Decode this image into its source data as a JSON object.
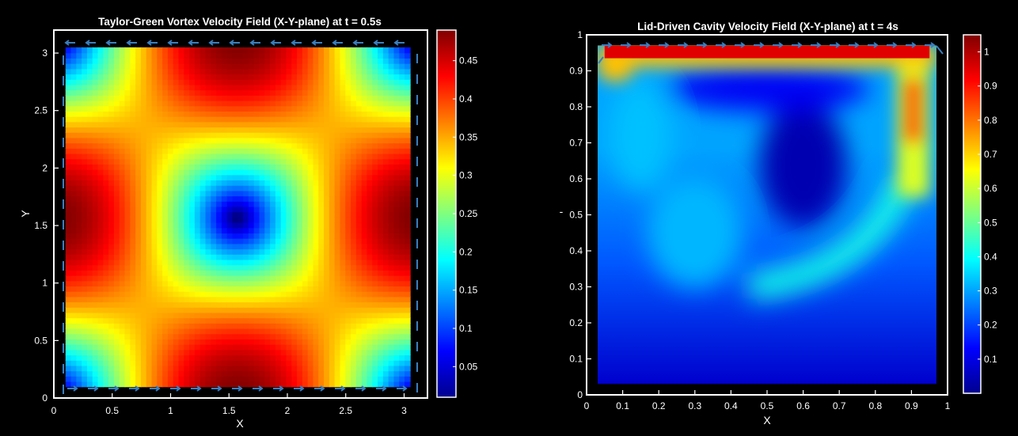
{
  "colormap": "jet",
  "chart_data": [
    {
      "type": "heatmap",
      "title": "Taylor-Green Vortex Velocity Field (X-Y-plane) at t = 0.5s",
      "xlabel": "X",
      "ylabel": "Y",
      "xlim": [
        0,
        3.2
      ],
      "ylim": [
        0,
        3.2
      ],
      "data_extent": {
        "x": [
          0.1,
          3.05
        ],
        "y": [
          0.1,
          3.05
        ]
      },
      "x_ticks": [
        0,
        0.5,
        1,
        1.5,
        2,
        2.5,
        3
      ],
      "x_tick_labels": [
        "0",
        "0.5",
        "1",
        "1.5",
        "2",
        "2.5",
        "3"
      ],
      "y_ticks": [
        0,
        0.5,
        1,
        1.5,
        2,
        2.5,
        3
      ],
      "y_tick_labels": [
        "0",
        "0.5",
        "1",
        "1.5",
        "2",
        "2.5",
        "3"
      ],
      "field": "speed = 0.49 * sqrt(sin^2(x)cos^2(y) + cos^2(x)sin^2(y)); min at (1.57,1.57), max at edge midpoints",
      "value_range": [
        0.01,
        0.49
      ],
      "sample_grid": {
        "x": [
          0.1,
          0.59,
          1.08,
          1.57,
          2.06,
          2.55,
          3.05
        ],
        "y": [
          0.1,
          0.59,
          1.08,
          1.57,
          2.06,
          2.55,
          3.05
        ],
        "speed": [
          [
            0.07,
            0.27,
            0.43,
            0.49,
            0.43,
            0.27,
            0.07
          ],
          [
            0.27,
            0.38,
            0.44,
            0.47,
            0.44,
            0.38,
            0.27
          ],
          [
            0.43,
            0.44,
            0.31,
            0.23,
            0.31,
            0.44,
            0.43
          ],
          [
            0.49,
            0.47,
            0.23,
            0.01,
            0.23,
            0.47,
            0.49
          ],
          [
            0.43,
            0.44,
            0.31,
            0.23,
            0.31,
            0.44,
            0.43
          ],
          [
            0.27,
            0.38,
            0.44,
            0.47,
            0.44,
            0.38,
            0.27
          ],
          [
            0.07,
            0.27,
            0.43,
            0.49,
            0.43,
            0.27,
            0.07
          ]
        ]
      },
      "colorbar": {
        "range": [
          0.01,
          0.49
        ],
        "ticks": [
          0.05,
          0.1,
          0.15,
          0.2,
          0.25,
          0.3,
          0.35,
          0.4,
          0.45
        ],
        "tick_labels": [
          "0.05",
          "0.1",
          "0.15",
          "0.2",
          "0.25",
          "0.3",
          "0.35",
          "0.4",
          "0.45"
        ]
      },
      "quiver_arrows": "small arrows along domain boundary"
    },
    {
      "type": "heatmap",
      "title": "Lid-Driven Cavity Velocity Field (X-Y-plane) at t = 4s",
      "xlabel": "X",
      "ylabel": "-",
      "xlim": [
        0,
        1
      ],
      "ylim": [
        0,
        1
      ],
      "data_extent": {
        "x": [
          0.03,
          0.97
        ],
        "y": [
          0.03,
          0.97
        ]
      },
      "x_ticks": [
        0,
        0.1,
        0.2,
        0.3,
        0.4,
        0.5,
        0.6,
        0.7,
        0.8,
        0.9,
        1
      ],
      "x_tick_labels": [
        "0",
        "0.1",
        "0.2",
        "0.3",
        "0.4",
        "0.5",
        "0.6",
        "0.7",
        "0.8",
        "0.9",
        "1"
      ],
      "y_ticks": [
        0,
        0.1,
        0.2,
        0.3,
        0.4,
        0.5,
        0.6,
        0.7,
        0.8,
        0.9,
        1
      ],
      "y_tick_labels": [
        "0",
        "0.1",
        "0.2",
        "0.3",
        "0.4",
        "0.5",
        "0.6",
        "0.7",
        "0.8",
        "0.9",
        "1"
      ],
      "value_range": [
        0.0,
        1.05
      ],
      "sample_grid": {
        "x": [
          0.05,
          0.2,
          0.35,
          0.5,
          0.6,
          0.75,
          0.9
        ],
        "y": [
          0.95,
          0.8,
          0.6,
          0.4,
          0.2,
          0.05
        ],
        "speed": [
          [
            0.85,
            0.9,
            0.95,
            0.95,
            0.95,
            0.95,
            0.9
          ],
          [
            0.35,
            0.25,
            0.2,
            0.15,
            0.15,
            0.3,
            0.8
          ],
          [
            0.3,
            0.3,
            0.2,
            0.1,
            0.05,
            0.2,
            0.6
          ],
          [
            0.25,
            0.3,
            0.3,
            0.3,
            0.3,
            0.4,
            0.35
          ],
          [
            0.15,
            0.2,
            0.25,
            0.3,
            0.3,
            0.3,
            0.2
          ],
          [
            0.08,
            0.1,
            0.12,
            0.15,
            0.15,
            0.15,
            0.1
          ]
        ]
      },
      "features": {
        "lid_jet": "red band along y≈0.94-0.97, x 0.03–0.97",
        "primary_vortex_core": {
          "x": 0.6,
          "y": 0.64,
          "speed": 0.05
        },
        "right_wall_jet": {
          "x": 0.9,
          "y_range": [
            0.55,
            0.9
          ],
          "speed": 0.85
        },
        "left_bump": {
          "x": 0.08,
          "y": 0.9,
          "speed": 0.75
        },
        "cyan_arc": "speed ≈0.4 along lower-right sweep from (0.85,0.55) to (0.45,0.35)"
      },
      "colorbar": {
        "range": [
          0.0,
          1.05
        ],
        "ticks": [
          0.1,
          0.2,
          0.3,
          0.4,
          0.5,
          0.6,
          0.7,
          0.8,
          0.9,
          1
        ],
        "tick_labels": [
          "0.1",
          "0.2",
          "0.3",
          "0.4",
          "0.5",
          "0.6",
          "0.7",
          "0.8",
          "0.9",
          "1"
        ]
      },
      "quiver_arrows": "small arrows along lid and upper walls"
    }
  ]
}
